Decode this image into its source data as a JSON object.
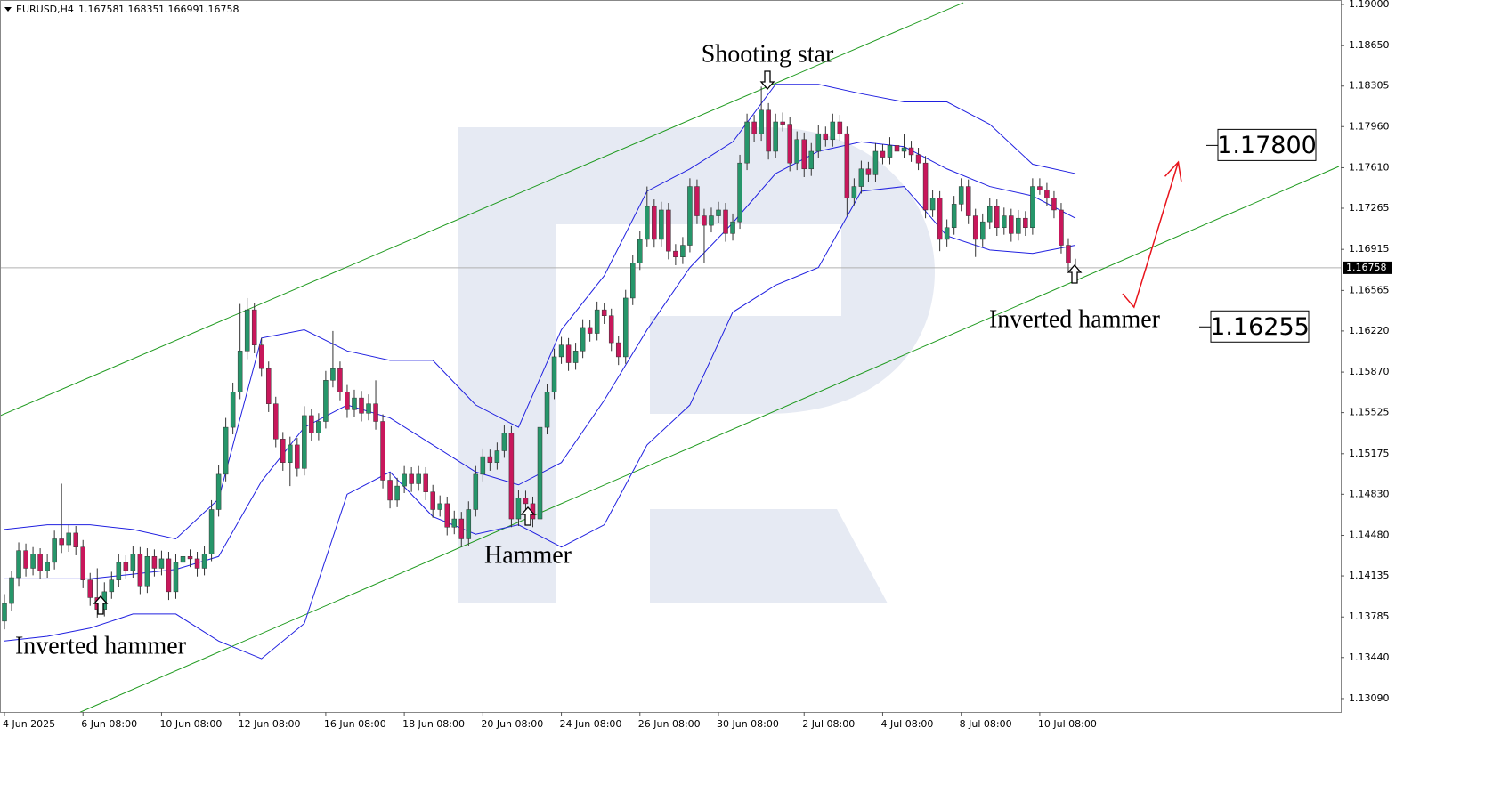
{
  "chart_data": {
    "type": "candlestick",
    "title": "EURUSD,H4",
    "up_color": "#26966a",
    "down_color": "#c8175b",
    "band_color": "#2020e0",
    "channel_color": "#1f9a1f",
    "forecast_color": "#e8141c",
    "ylim": [
      1.12976,
      1.19038
    ],
    "yticks": [
      {
        "value": 1.19,
        "label": "1.19000"
      },
      {
        "value": 1.1865,
        "label": "1.18650"
      },
      1.18305,
      {
        "value": 1.1796,
        "label": "1.17960"
      },
      {
        "value": 1.1761,
        "label": "1.17610"
      },
      1.17265,
      1.16915,
      1.16565,
      {
        "value": 1.1622,
        "label": "1.16220"
      },
      {
        "value": 1.1587,
        "label": "1.15870"
      },
      1.15525,
      1.15175,
      {
        "value": 1.1483,
        "label": "1.14830"
      },
      {
        "value": 1.1448,
        "label": "1.14480"
      },
      1.14135,
      1.13785,
      {
        "value": 1.1344,
        "label": "1.13440"
      },
      {
        "value": 1.1309,
        "label": "1.13090"
      }
    ],
    "xticks": [
      {
        "value": 0,
        "label": "4 Jun 2025"
      },
      {
        "value": 11,
        "label": "6 Jun 08:00"
      },
      {
        "value": 22,
        "label": "10 Jun 08:00"
      },
      {
        "value": 33,
        "label": "12 Jun 08:00"
      },
      {
        "value": 45,
        "label": "16 Jun 08:00"
      },
      {
        "value": 56,
        "label": "18 Jun 08:00"
      },
      {
        "value": 67,
        "label": "20 Jun 08:00"
      },
      {
        "value": 78,
        "label": "24 Jun 08:00"
      },
      {
        "value": 89,
        "label": "26 Jun 08:00"
      },
      {
        "value": 100,
        "label": "30 Jun 08:00"
      },
      {
        "value": 112,
        "label": "2 Jul 08:00"
      },
      {
        "value": 123,
        "label": "4 Jul 08:00"
      },
      {
        "value": 134,
        "label": "8 Jul 08:00"
      },
      {
        "value": 145,
        "label": "10 Jul 08:00"
      }
    ],
    "current_price": 1.16758,
    "levels": [
      {
        "value": 1.178,
        "label": "1.17800"
      },
      {
        "value": 1.16255,
        "label": "1.16255"
      }
    ],
    "annotations": [
      "Shooting star",
      "Hammer",
      "Inverted hammer",
      "Inverted hammer"
    ],
    "candles": [
      [
        1.1375,
        1.1398,
        1.1368,
        1.139
      ],
      [
        1.139,
        1.1418,
        1.1384,
        1.1412
      ],
      [
        1.1412,
        1.1442,
        1.1405,
        1.1435
      ],
      [
        1.1435,
        1.1441,
        1.1413,
        1.142
      ],
      [
        1.142,
        1.1438,
        1.1414,
        1.1432
      ],
      [
        1.1432,
        1.1437,
        1.1411,
        1.1418
      ],
      [
        1.1418,
        1.1432,
        1.1412,
        1.1425
      ],
      [
        1.1425,
        1.1452,
        1.1419,
        1.1445
      ],
      [
        1.1445,
        1.1492,
        1.1433,
        1.144
      ],
      [
        1.144,
        1.1457,
        1.1434,
        1.145
      ],
      [
        1.145,
        1.1456,
        1.1431,
        1.1438
      ],
      [
        1.1438,
        1.1444,
        1.1403,
        1.141
      ],
      [
        1.141,
        1.1416,
        1.1388,
        1.1395
      ],
      [
        1.1395,
        1.142,
        1.1378,
        1.1385
      ],
      [
        1.1385,
        1.1408,
        1.1379,
        1.14
      ],
      [
        1.14,
        1.1417,
        1.1394,
        1.141
      ],
      [
        1.141,
        1.1432,
        1.1404,
        1.1425
      ],
      [
        1.1425,
        1.1431,
        1.1411,
        1.1418
      ],
      [
        1.1418,
        1.1439,
        1.1412,
        1.1432
      ],
      [
        1.1432,
        1.1438,
        1.1398,
        1.1405
      ],
      [
        1.1405,
        1.1437,
        1.1399,
        1.143
      ],
      [
        1.143,
        1.1436,
        1.1413,
        1.142
      ],
      [
        1.142,
        1.1435,
        1.1414,
        1.1428
      ],
      [
        1.1428,
        1.1434,
        1.1393,
        1.14
      ],
      [
        1.14,
        1.1432,
        1.1394,
        1.1425
      ],
      [
        1.1425,
        1.1437,
        1.1419,
        1.143
      ],
      [
        1.143,
        1.1436,
        1.1421,
        1.1428
      ],
      [
        1.1428,
        1.1434,
        1.1413,
        1.142
      ],
      [
        1.142,
        1.1439,
        1.1414,
        1.1432
      ],
      [
        1.1432,
        1.1478,
        1.1426,
        1.147
      ],
      [
        1.147,
        1.1508,
        1.1464,
        1.15
      ],
      [
        1.15,
        1.1548,
        1.1494,
        1.154
      ],
      [
        1.154,
        1.1578,
        1.1534,
        1.157
      ],
      [
        1.157,
        1.1645,
        1.1564,
        1.1605
      ],
      [
        1.1605,
        1.165,
        1.1598,
        1.164
      ],
      [
        1.164,
        1.1646,
        1.1603,
        1.161
      ],
      [
        1.161,
        1.1616,
        1.1583,
        1.159
      ],
      [
        1.159,
        1.1596,
        1.1553,
        1.156
      ],
      [
        1.156,
        1.1566,
        1.1523,
        1.153
      ],
      [
        1.153,
        1.1536,
        1.1503,
        1.151
      ],
      [
        1.151,
        1.1532,
        1.149,
        1.1525
      ],
      [
        1.1525,
        1.1531,
        1.1498,
        1.1505
      ],
      [
        1.1505,
        1.1558,
        1.1499,
        1.155
      ],
      [
        1.155,
        1.1556,
        1.1528,
        1.1535
      ],
      [
        1.1535,
        1.1552,
        1.1529,
        1.1545
      ],
      [
        1.1545,
        1.1588,
        1.1539,
        1.158
      ],
      [
        1.158,
        1.1622,
        1.1574,
        1.159
      ],
      [
        1.159,
        1.1596,
        1.1563,
        1.157
      ],
      [
        1.157,
        1.1576,
        1.1548,
        1.1555
      ],
      [
        1.1555,
        1.1572,
        1.1549,
        1.1565
      ],
      [
        1.1565,
        1.1571,
        1.1545,
        1.1552
      ],
      [
        1.1552,
        1.1568,
        1.1546,
        1.156
      ],
      [
        1.156,
        1.158,
        1.1538,
        1.1545
      ],
      [
        1.1545,
        1.1551,
        1.1488,
        1.1495
      ],
      [
        1.1495,
        1.1501,
        1.1471,
        1.1478
      ],
      [
        1.1478,
        1.1497,
        1.1472,
        1.149
      ],
      [
        1.149,
        1.1507,
        1.1484,
        1.15
      ],
      [
        1.15,
        1.1506,
        1.1485,
        1.1492
      ],
      [
        1.1492,
        1.1507,
        1.1486,
        1.15
      ],
      [
        1.15,
        1.1506,
        1.1478,
        1.1485
      ],
      [
        1.1485,
        1.1491,
        1.1463,
        1.147
      ],
      [
        1.147,
        1.1482,
        1.1464,
        1.1475
      ],
      [
        1.1475,
        1.1481,
        1.1448,
        1.1455
      ],
      [
        1.1455,
        1.1469,
        1.1449,
        1.1462
      ],
      [
        1.1462,
        1.1468,
        1.1438,
        1.1445
      ],
      [
        1.1445,
        1.1477,
        1.1439,
        1.147
      ],
      [
        1.147,
        1.1507,
        1.1464,
        1.15
      ],
      [
        1.15,
        1.1522,
        1.1494,
        1.1515
      ],
      [
        1.1515,
        1.1521,
        1.1503,
        1.151
      ],
      [
        1.151,
        1.1527,
        1.1504,
        1.152
      ],
      [
        1.152,
        1.1542,
        1.1514,
        1.1535
      ],
      [
        1.1535,
        1.1541,
        1.1455,
        1.1462
      ],
      [
        1.1462,
        1.1487,
        1.1456,
        1.148
      ],
      [
        1.148,
        1.1486,
        1.1469,
        1.1475
      ],
      [
        1.1475,
        1.1481,
        1.1455,
        1.1462
      ],
      [
        1.1462,
        1.1547,
        1.1456,
        1.154
      ],
      [
        1.154,
        1.1577,
        1.1534,
        1.157
      ],
      [
        1.157,
        1.1607,
        1.1564,
        1.16
      ],
      [
        1.16,
        1.1617,
        1.1594,
        1.161
      ],
      [
        1.161,
        1.1616,
        1.1588,
        1.1595
      ],
      [
        1.1595,
        1.1612,
        1.1589,
        1.1605
      ],
      [
        1.1605,
        1.1632,
        1.1599,
        1.1625
      ],
      [
        1.1625,
        1.1631,
        1.1613,
        1.162
      ],
      [
        1.162,
        1.1647,
        1.1614,
        1.164
      ],
      [
        1.164,
        1.1646,
        1.1628,
        1.1635
      ],
      [
        1.1635,
        1.1641,
        1.1605,
        1.1612
      ],
      [
        1.1612,
        1.1618,
        1.1593,
        1.16
      ],
      [
        1.16,
        1.1657,
        1.1594,
        1.165
      ],
      [
        1.165,
        1.1687,
        1.1644,
        1.168
      ],
      [
        1.168,
        1.1707,
        1.1674,
        1.17
      ],
      [
        1.17,
        1.1745,
        1.1694,
        1.1728
      ],
      [
        1.1728,
        1.1734,
        1.1693,
        1.17
      ],
      [
        1.17,
        1.1732,
        1.1694,
        1.1725
      ],
      [
        1.1725,
        1.1731,
        1.1683,
        1.169
      ],
      [
        1.169,
        1.1696,
        1.1678,
        1.1685
      ],
      [
        1.1685,
        1.1702,
        1.1679,
        1.1695
      ],
      [
        1.1695,
        1.1752,
        1.1689,
        1.1745
      ],
      [
        1.1745,
        1.1751,
        1.1713,
        1.172
      ],
      [
        1.172,
        1.1726,
        1.168,
        1.1712
      ],
      [
        1.1712,
        1.1727,
        1.1706,
        1.172
      ],
      [
        1.172,
        1.1732,
        1.1714,
        1.1725
      ],
      [
        1.1725,
        1.1731,
        1.1698,
        1.1705
      ],
      [
        1.1705,
        1.1722,
        1.1699,
        1.1715
      ],
      [
        1.1715,
        1.1772,
        1.1709,
        1.1765
      ],
      [
        1.1765,
        1.1807,
        1.1759,
        1.18
      ],
      [
        1.18,
        1.1806,
        1.1783,
        1.179
      ],
      [
        1.179,
        1.183,
        1.1784,
        1.181
      ],
      [
        1.181,
        1.1816,
        1.1768,
        1.1775
      ],
      [
        1.1775,
        1.1807,
        1.1769,
        1.18
      ],
      [
        1.18,
        1.1808,
        1.1792,
        1.1798
      ],
      [
        1.1798,
        1.1804,
        1.1758,
        1.1765
      ],
      [
        1.1765,
        1.1792,
        1.1759,
        1.1785
      ],
      [
        1.1785,
        1.1791,
        1.1753,
        1.176
      ],
      [
        1.176,
        1.1782,
        1.1754,
        1.1775
      ],
      [
        1.1775,
        1.1797,
        1.1769,
        1.179
      ],
      [
        1.179,
        1.1796,
        1.1779,
        1.1785
      ],
      [
        1.1785,
        1.1807,
        1.1779,
        1.18
      ],
      [
        1.18,
        1.1806,
        1.1784,
        1.179
      ],
      [
        1.179,
        1.1796,
        1.172,
        1.1735
      ],
      [
        1.1735,
        1.1752,
        1.1729,
        1.1745
      ],
      [
        1.1745,
        1.1767,
        1.1739,
        1.176
      ],
      [
        1.176,
        1.1766,
        1.1749,
        1.1755
      ],
      [
        1.1755,
        1.1782,
        1.1749,
        1.1775
      ],
      [
        1.1775,
        1.1781,
        1.1764,
        1.177
      ],
      [
        1.177,
        1.1787,
        1.1764,
        1.178
      ],
      [
        1.178,
        1.1786,
        1.1769,
        1.1775
      ],
      [
        1.1775,
        1.179,
        1.1769,
        1.1778
      ],
      [
        1.1778,
        1.1784,
        1.1766,
        1.1772
      ],
      [
        1.1772,
        1.1778,
        1.1759,
        1.1765
      ],
      [
        1.1765,
        1.1771,
        1.1718,
        1.1725
      ],
      [
        1.1725,
        1.1742,
        1.1719,
        1.1735
      ],
      [
        1.1735,
        1.1741,
        1.169,
        1.17
      ],
      [
        1.17,
        1.1717,
        1.1694,
        1.171
      ],
      [
        1.171,
        1.1737,
        1.1704,
        1.173
      ],
      [
        1.173,
        1.1752,
        1.1724,
        1.1745
      ],
      [
        1.1745,
        1.1751,
        1.1713,
        1.172
      ],
      [
        1.172,
        1.1726,
        1.1685,
        1.17
      ],
      [
        1.17,
        1.1722,
        1.1694,
        1.1715
      ],
      [
        1.1715,
        1.1735,
        1.1709,
        1.1728
      ],
      [
        1.1728,
        1.1734,
        1.1703,
        1.171
      ],
      [
        1.171,
        1.1727,
        1.1704,
        1.172
      ],
      [
        1.172,
        1.1726,
        1.1698,
        1.1705
      ],
      [
        1.1705,
        1.1725,
        1.1699,
        1.1718
      ],
      [
        1.1718,
        1.1724,
        1.1703,
        1.171
      ],
      [
        1.171,
        1.1752,
        1.1704,
        1.1745
      ],
      [
        1.1745,
        1.1752,
        1.1738,
        1.1742
      ],
      [
        1.1742,
        1.1748,
        1.1728,
        1.1735
      ],
      [
        1.1735,
        1.1741,
        1.1718,
        1.1725
      ],
      [
        1.1725,
        1.1731,
        1.1688,
        1.1695
      ],
      [
        1.1695,
        1.1701,
        1.1673,
        1.168
      ],
      [
        1.16758,
        1.16835,
        1.16699,
        1.16758
      ]
    ],
    "bands": {
      "x": [
        0,
        6,
        12,
        18,
        24,
        30,
        36,
        42,
        48,
        54,
        60,
        66,
        72,
        78,
        84,
        90,
        96,
        102,
        108,
        114,
        120,
        126,
        132,
        138,
        144,
        150
      ],
      "upper": [
        1.1453,
        1.1457,
        1.1457,
        1.1453,
        1.1445,
        1.1479,
        1.1616,
        1.1623,
        1.1605,
        1.1597,
        1.1597,
        1.1559,
        1.154,
        1.1623,
        1.1669,
        1.1741,
        1.176,
        1.1783,
        1.1832,
        1.1832,
        1.1824,
        1.1817,
        1.1817,
        1.1798,
        1.1764,
        1.1756
      ],
      "middle": [
        1.1411,
        1.1411,
        1.1411,
        1.1415,
        1.1419,
        1.143,
        1.1494,
        1.154,
        1.1559,
        1.1548,
        1.1525,
        1.1502,
        1.1491,
        1.151,
        1.1563,
        1.1623,
        1.1676,
        1.1714,
        1.1756,
        1.1775,
        1.1783,
        1.1779,
        1.176,
        1.1745,
        1.1737,
        1.1718
      ],
      "lower": [
        1.1358,
        1.1362,
        1.1369,
        1.1381,
        1.1381,
        1.1358,
        1.1343,
        1.1373,
        1.1483,
        1.1502,
        1.1464,
        1.1449,
        1.1457,
        1.1438,
        1.1457,
        1.1525,
        1.1559,
        1.1638,
        1.1661,
        1.1676,
        1.1741,
        1.1745,
        1.1703,
        1.1691,
        1.1688,
        1.1695
      ]
    },
    "channels": [
      {
        "x": [
          -0.62,
          134.3
        ],
        "y": [
          1.15498,
          1.19015
        ]
      },
      {
        "x": [
          10.6,
          186.9
        ],
        "y": [
          1.12974,
          1.17621
        ]
      }
    ],
    "forecast": {
      "x": [
        156.6,
        158.2,
        164.4
      ],
      "y": [
        1.16537,
        1.16423,
        1.17658
      ]
    }
  }
}
